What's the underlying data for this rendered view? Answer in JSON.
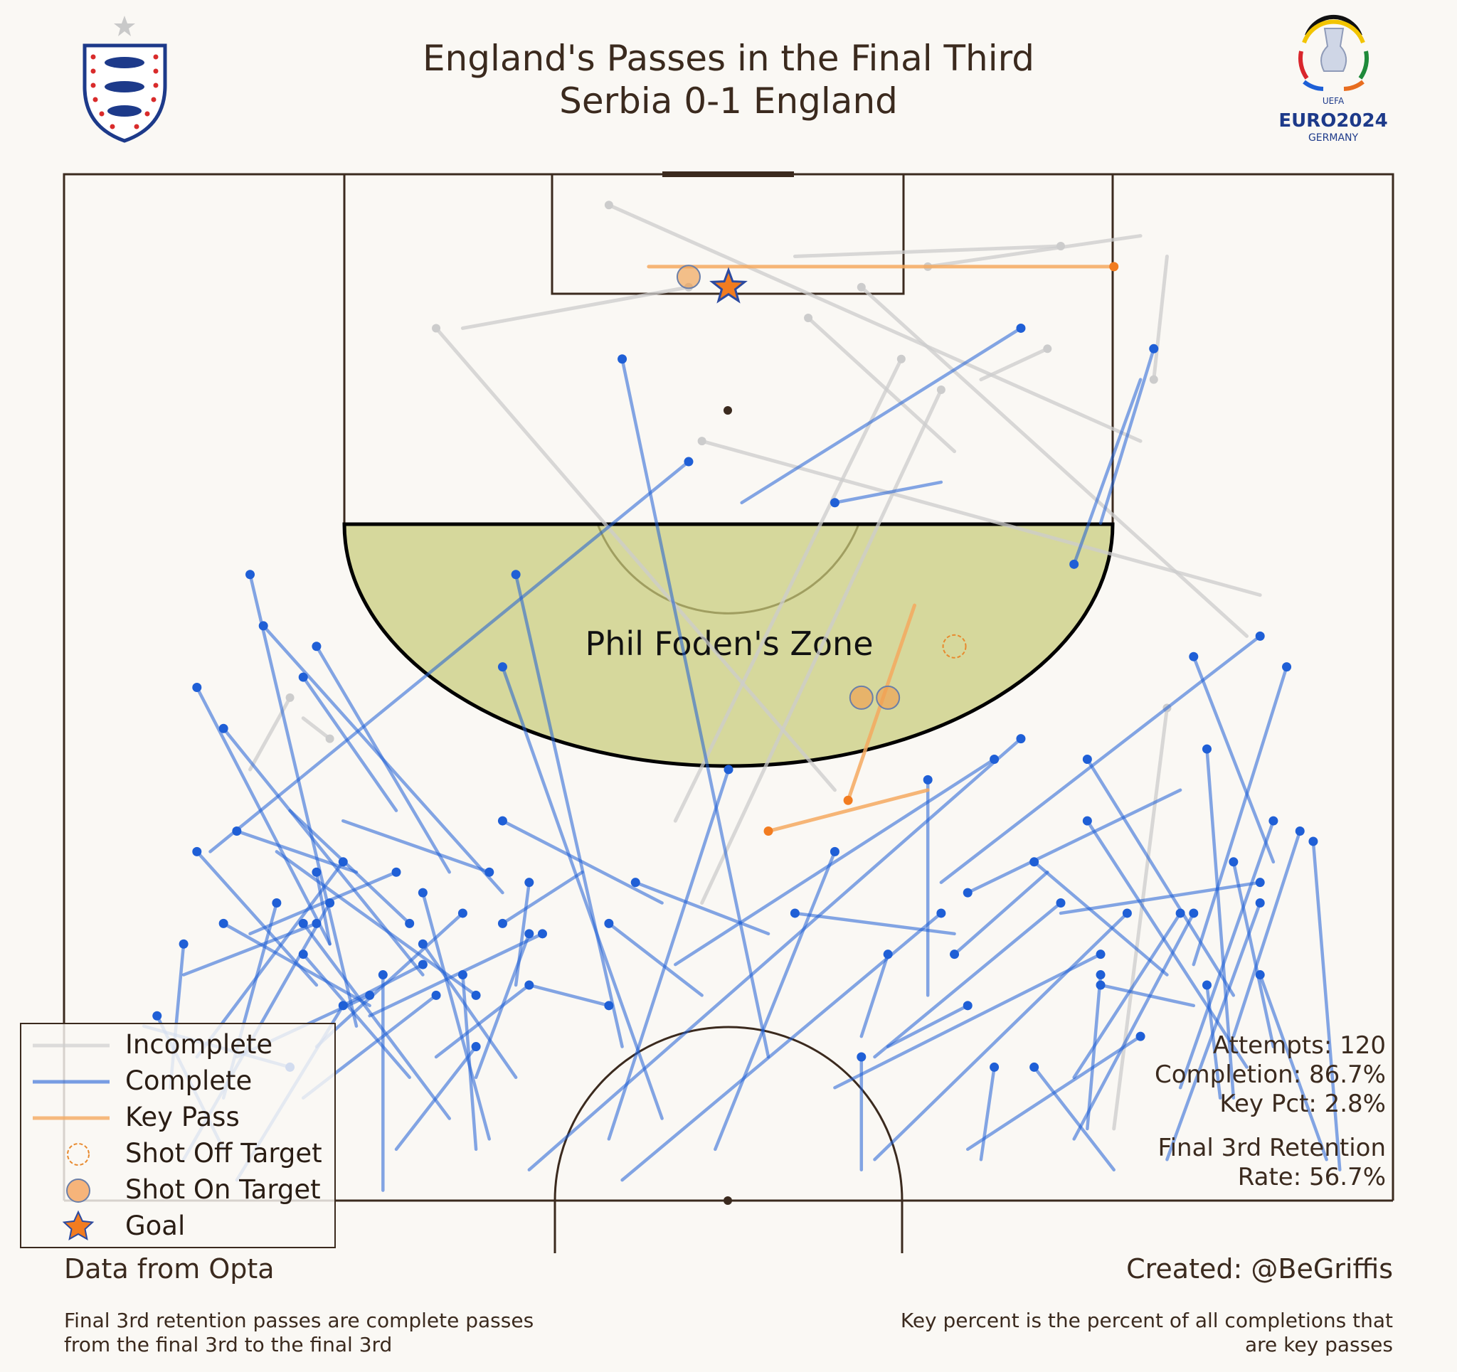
{
  "title_line1": "England's Passes in the Final Third",
  "title_line2": "Serbia 0-1 England",
  "zone_label": "Phil Foden's Zone",
  "credits": {
    "source": "Data from Opta",
    "author": "Created: @BeGriffis",
    "retention_note": "Final 3rd retention passes are complete passes from the final 3rd to the final 3rd",
    "key_note": "Key percent is the percent of all completions that are key passes"
  },
  "stats": {
    "attempts": "Attempts: 120",
    "completion": "Completion: 86.7%",
    "key_pct": "Key Pct: 2.8%",
    "retention": "Final 3rd Retention Rate: 56.7%"
  },
  "legend": {
    "incomplete": "Incomplete",
    "complete": "Complete",
    "key_pass": "Key Pass",
    "shot_off": "Shot Off Target",
    "shot_on": "Shot On Target",
    "goal": "Goal"
  },
  "logos": {
    "left": "england-crest-icon",
    "right": "euro2024-logo-icon",
    "right_lettering": [
      "UEFA",
      "EURO2024",
      "GERMANY"
    ]
  },
  "colors": {
    "background": "#faf8f4",
    "pitch_line": "#3b2a1e",
    "complete": "#1f5fd6",
    "incomplete": "#cfcfcf",
    "key_pass": "#f5a95f",
    "shot": "#f0a050",
    "goal": "#f27c20",
    "zone": "#c7cc7a"
  },
  "chart_data": {
    "type": "pass map",
    "coordinates": "x = 0-100 across pitch width (left touchline to right), y = 0-100 depth from opponent goal line to halfway line",
    "stats": {
      "attempts": 120,
      "completion_pct": 86.7,
      "key_pct": 2.8,
      "final_third_retention_pct": 56.7
    },
    "complete_passes": [
      [
        23,
        80,
        13,
        86
      ],
      [
        19,
        73,
        9,
        78
      ],
      [
        27,
        77,
        21,
        81
      ],
      [
        30,
        72,
        19,
        85
      ],
      [
        33,
        63,
        45,
        71
      ],
      [
        36,
        74,
        23,
        82
      ],
      [
        41,
        81,
        35,
        79
      ],
      [
        10,
        66,
        19,
        79
      ],
      [
        12,
        73,
        23,
        81
      ],
      [
        10,
        50,
        20,
        75
      ],
      [
        13,
        64,
        22,
        68
      ],
      [
        7,
        82,
        12,
        95
      ],
      [
        18,
        76,
        26,
        88
      ],
      [
        26,
        73,
        17,
        62
      ],
      [
        33,
        73,
        39,
        68
      ],
      [
        32,
        68,
        21,
        63
      ],
      [
        12,
        54,
        27,
        78
      ],
      [
        19,
        68,
        20,
        75
      ],
      [
        19,
        46,
        29,
        68
      ],
      [
        31,
        80,
        16,
        66
      ],
      [
        21,
        67,
        10,
        86
      ],
      [
        25,
        68,
        14,
        74
      ],
      [
        27,
        70,
        32,
        94
      ],
      [
        28,
        80,
        18,
        90
      ],
      [
        35,
        69,
        34,
        79
      ],
      [
        27,
        75,
        34,
        88
      ],
      [
        17,
        87,
        6,
        83
      ],
      [
        21,
        81,
        13,
        98
      ],
      [
        16,
        71,
        12,
        90
      ],
      [
        24,
        78,
        24,
        99
      ],
      [
        9,
        75,
        8,
        89
      ],
      [
        18,
        73,
        29,
        92
      ],
      [
        20,
        71,
        9,
        96
      ],
      [
        31,
        85,
        25,
        95
      ],
      [
        30,
        78,
        31,
        95
      ],
      [
        35,
        74,
        31,
        88
      ],
      [
        14,
        39,
        22,
        83
      ],
      [
        18,
        49,
        25,
        62
      ],
      [
        15,
        44,
        33,
        70
      ],
      [
        34,
        39,
        42,
        85
      ],
      [
        47,
        28,
        11,
        66
      ],
      [
        35,
        79,
        28,
        86
      ],
      [
        41,
        73,
        48,
        80
      ],
      [
        33,
        48,
        45,
        92
      ],
      [
        43,
        69,
        53,
        74
      ],
      [
        58,
        66,
        49,
        95
      ],
      [
        55,
        72,
        67,
        74
      ],
      [
        75,
        71,
        61,
        86
      ],
      [
        66,
        72,
        42,
        98
      ],
      [
        80,
        72,
        61,
        96
      ],
      [
        81,
        84,
        68,
        95
      ],
      [
        73,
        87,
        79,
        97
      ],
      [
        88,
        67,
        91,
        85
      ],
      [
        91,
        63,
        84,
        89
      ],
      [
        77,
        63,
        89,
        87
      ],
      [
        67,
        76,
        74,
        68
      ],
      [
        72,
        55,
        35,
        97
      ],
      [
        92,
        48,
        85,
        77
      ],
      [
        86,
        79,
        87,
        90
      ],
      [
        93,
        64,
        88,
        84
      ],
      [
        73,
        67,
        83,
        78
      ],
      [
        77,
        57,
        88,
        80
      ],
      [
        78,
        78,
        77,
        93
      ],
      [
        90,
        78,
        95,
        96
      ],
      [
        94,
        65,
        96,
        97
      ],
      [
        84,
        72,
        76,
        88
      ],
      [
        86,
        56,
        88,
        90
      ],
      [
        90,
        71,
        83,
        96
      ],
      [
        90,
        45,
        66,
        69
      ],
      [
        78,
        76,
        58,
        89
      ],
      [
        85,
        72,
        76,
        94
      ],
      [
        82,
        17,
        78,
        34
      ],
      [
        90,
        69,
        75,
        72
      ],
      [
        85,
        47,
        91,
        67
      ],
      [
        68,
        81,
        62,
        85
      ],
      [
        70,
        87,
        69,
        96
      ],
      [
        60,
        86,
        60,
        97
      ],
      [
        50,
        58,
        41,
        94
      ],
      [
        42,
        18,
        53,
        86
      ],
      [
        58,
        32,
        66,
        30
      ],
      [
        62,
        76,
        60,
        84
      ],
      [
        65,
        59,
        65,
        80
      ],
      [
        76,
        38,
        81,
        20
      ],
      [
        72,
        15,
        51,
        32
      ],
      [
        70,
        57,
        46,
        77
      ],
      [
        68,
        70,
        84,
        60
      ],
      [
        78,
        79,
        85,
        81
      ]
    ],
    "incomplete_passes": [
      [
        41,
        3,
        81,
        26
      ],
      [
        28,
        15,
        58,
        60
      ],
      [
        56,
        14,
        67,
        27
      ],
      [
        66,
        21,
        48,
        71
      ],
      [
        63,
        18,
        46,
        63
      ],
      [
        60,
        11,
        89,
        45
      ],
      [
        48,
        26,
        90,
        41
      ],
      [
        82,
        20,
        83,
        8
      ],
      [
        47,
        11,
        30,
        15
      ],
      [
        65,
        9,
        81,
        6
      ],
      [
        83,
        52,
        79,
        93
      ],
      [
        74,
        17,
        69,
        20
      ],
      [
        75,
        7,
        55,
        8
      ],
      [
        20,
        55,
        18,
        53
      ],
      [
        17,
        51,
        14,
        58
      ]
    ],
    "key_passes": [
      [
        79,
        9,
        44,
        9
      ],
      [
        53,
        64,
        65,
        60
      ],
      [
        59,
        61,
        64,
        42
      ]
    ],
    "shots": [
      {
        "x": 47,
        "y": 10,
        "outcome": "On Target"
      },
      {
        "x": 60,
        "y": 51,
        "outcome": "On Target"
      },
      {
        "x": 62,
        "y": 51,
        "outcome": "On Target"
      },
      {
        "x": 67,
        "y": 46,
        "outcome": "Off Target"
      },
      {
        "x": 50,
        "y": 11,
        "outcome": "Goal"
      }
    ]
  }
}
